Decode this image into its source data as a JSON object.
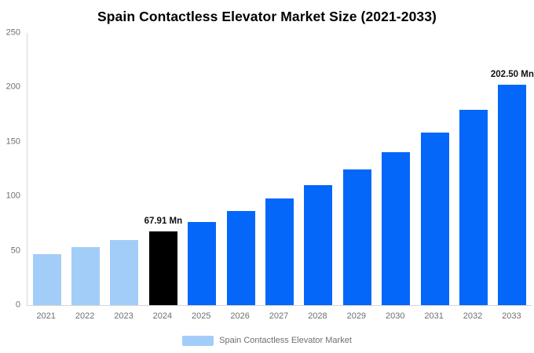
{
  "chart_data": {
    "type": "bar",
    "title": "Spain Contactless Elevator Market Size (2021-2033)",
    "unit": "Mn",
    "categories": [
      "2021",
      "2022",
      "2023",
      "2024",
      "2025",
      "2026",
      "2027",
      "2028",
      "2029",
      "2030",
      "2031",
      "2032",
      "2033"
    ],
    "series": [
      {
        "name": "Spain Contactless Elevator Market",
        "values": [
          47.2,
          53.3,
          60.1,
          67.91,
          76.7,
          86.6,
          97.7,
          110.4,
          124.6,
          140.7,
          158.8,
          179.3,
          202.5
        ]
      }
    ],
    "ylim": [
      0,
      250
    ],
    "yticks": [
      0,
      50,
      100,
      150,
      200,
      250
    ],
    "grid": false,
    "legend": {
      "position": "bottom",
      "label": "Spain Contactless Elevator Market",
      "swatch_color": "#A2CDF8"
    },
    "bar_colors": [
      "#A2CDF8",
      "#A2CDF8",
      "#A2CDF8",
      "#000000",
      "#0566FA",
      "#0566FA",
      "#0566FA",
      "#0566FA",
      "#0566FA",
      "#0566FA",
      "#0566FA",
      "#0566FA",
      "#0566FA"
    ],
    "annotations": [
      {
        "category": "2024",
        "text": "67.91 Mn"
      },
      {
        "category": "2033",
        "text": "202.50 Mn"
      }
    ],
    "colors": {
      "historical": "#A2CDF8",
      "highlight": "#000000",
      "forecast": "#0566FA",
      "axis_line": "#D6D6D6",
      "tick_text": "#6F6F6F",
      "annotation_text": "#111111",
      "title_text": "#000000"
    }
  }
}
